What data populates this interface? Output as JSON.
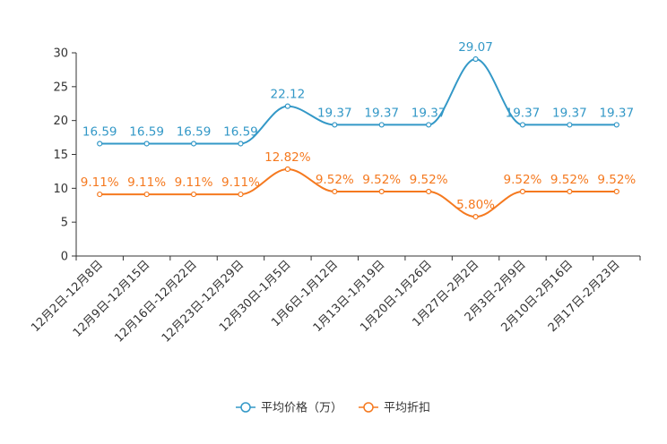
{
  "chart_data": {
    "type": "line",
    "title": "",
    "xlabel": "",
    "ylabel": "",
    "ylim": [
      0,
      30
    ],
    "yticks": [
      0,
      5,
      10,
      15,
      20,
      25,
      30
    ],
    "smooth": true,
    "grid": false,
    "legend_position": "bottom-center",
    "categories": [
      "12月2日-12月8日",
      "12月9日-12月15日",
      "12月16日-12月22日",
      "12月23日-12月29日",
      "12月30日-1月5日",
      "1月6日-1月12日",
      "1月13日-1月19日",
      "1月20日-1月26日",
      "1月27日-2月2日",
      "2月3日-2月9日",
      "2月10日-2月16日",
      "2月17日-2月23日"
    ],
    "series": [
      {
        "name": "平均价格（万）",
        "color": "#3398c7",
        "values": [
          16.59,
          16.59,
          16.59,
          16.59,
          22.12,
          19.37,
          19.37,
          19.37,
          29.07,
          19.37,
          19.37,
          19.37
        ],
        "labels": [
          "16.59",
          "16.59",
          "16.59",
          "16.59",
          "22.12",
          "19.37",
          "19.37",
          "19.37",
          "29.07",
          "19.37",
          "19.37",
          "19.37"
        ]
      },
      {
        "name": "平均折扣",
        "color": "#f5791f",
        "values": [
          9.11,
          9.11,
          9.11,
          9.11,
          12.82,
          9.52,
          9.52,
          9.52,
          5.8,
          9.52,
          9.52,
          9.52
        ],
        "labels": [
          "9.11%",
          "9.11%",
          "9.11%",
          "9.11%",
          "12.82%",
          "9.52%",
          "9.52%",
          "9.52%",
          "5.80%",
          "9.52%",
          "9.52%",
          "9.52%"
        ]
      }
    ]
  }
}
